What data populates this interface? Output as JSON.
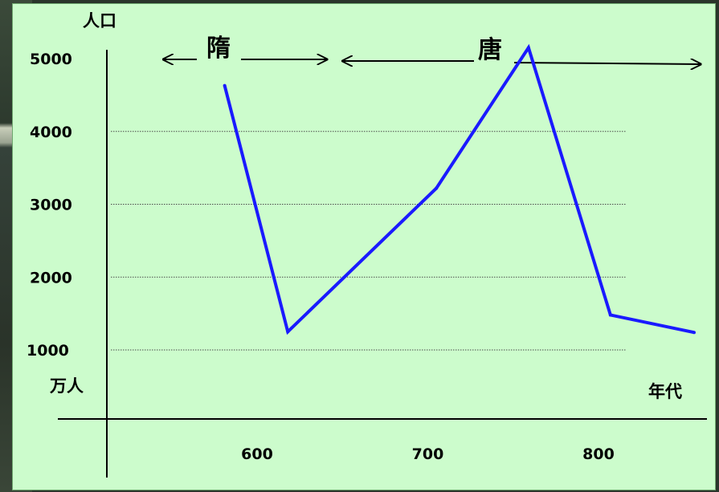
{
  "chart_data": {
    "type": "line",
    "title": "",
    "ylabel": "人口",
    "yunit": "万人",
    "xlabel": "年代",
    "y_ticks": [
      "5000",
      "4000",
      "3000",
      "2000",
      "1000"
    ],
    "x_ticks": [
      "600",
      "700",
      "800"
    ],
    "gridlines": [
      4000,
      3000,
      2000,
      1000
    ],
    "ylim": [
      0,
      5400
    ],
    "xlim": [
      540,
      870
    ],
    "grid": true,
    "series": [
      {
        "color": "#1a1aff",
        "x": [
          581,
          618,
          705,
          759,
          807,
          856
        ],
        "y": [
          4630,
          1250,
          3220,
          5150,
          1480,
          1240
        ]
      }
    ],
    "annotations": [
      {
        "label": "隋",
        "from": 545,
        "to": 641
      },
      {
        "label": "唐",
        "from": 650,
        "to": 860
      }
    ]
  }
}
